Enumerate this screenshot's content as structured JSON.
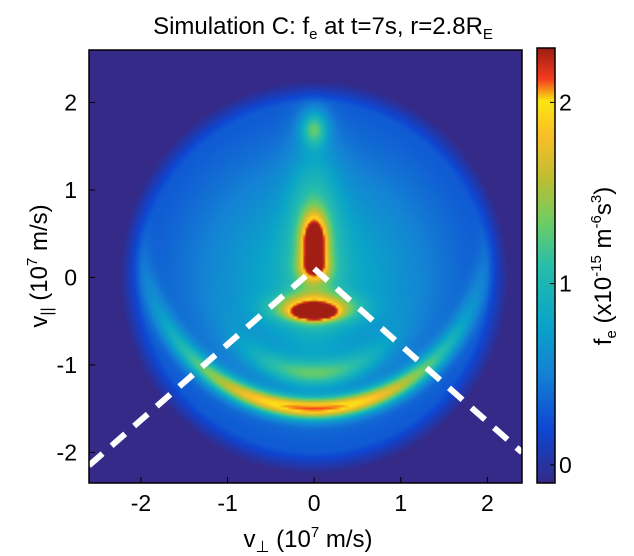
{
  "chart_data": {
    "type": "heatmap",
    "title": {
      "main": "Simulation C: f",
      "main_sub": "e",
      "rest": " at t=7s, r=2.8R",
      "rest_sub": "E"
    },
    "xlabel": {
      "base": "v",
      "sub": "⊥",
      "rest": " (10",
      "sup": "7",
      "tail": " m/s)"
    },
    "ylabel": {
      "base": "v",
      "sub": "||",
      "rest": " (10",
      "sup": "7",
      "tail": " m/s)"
    },
    "colorbar_label": {
      "base": "f",
      "sub": "e",
      "rest1": " (x10",
      "sup1": "-15",
      "rest2": " m",
      "sup2": "-6",
      "rest3": "s",
      "sup3": "3",
      "rest4": ")"
    },
    "xlim": [
      -2.6,
      2.4
    ],
    "ylim": [
      -2.35,
      2.6
    ],
    "xticks": [
      -2,
      -1,
      0,
      1,
      2
    ],
    "xtick_labels": [
      "-2",
      "-1",
      "0",
      "1",
      "2"
    ],
    "yticks": [
      -2,
      -1,
      0,
      1,
      2
    ],
    "ytick_labels": [
      "-2",
      "-1",
      "0",
      "1",
      "2"
    ],
    "clim": [
      -0.1,
      2.3
    ],
    "cticks": [
      0,
      1,
      2
    ],
    "ctick_labels": [
      "0",
      "1",
      "2"
    ],
    "colormap": "parula",
    "background_color": "#3b1f8f",
    "domain_radius": 2.25,
    "blobs": [
      {
        "x": 0,
        "y": 0,
        "sx": 1.4,
        "sy": 1.4,
        "a": 0.35
      },
      {
        "x": 0,
        "y": 0.55,
        "sx": 0.3,
        "sy": 1.0,
        "a": 0.28
      },
      {
        "x": 0,
        "y": 0.4,
        "sx": 0.13,
        "sy": 0.28,
        "a": 0.9
      },
      {
        "x": 0,
        "y": 0.12,
        "sx": 0.16,
        "sy": 0.14,
        "a": 0.45
      },
      {
        "x": 0,
        "y": -0.4,
        "sx": 0.2,
        "sy": 0.07,
        "a": 1.3
      },
      {
        "x": 0,
        "y": -0.35,
        "sx": 0.45,
        "sy": 0.15,
        "a": 0.6
      },
      {
        "x": 0,
        "y": 1.7,
        "sx": 0.15,
        "sy": 0.2,
        "a": 0.4
      }
    ],
    "arcs": [
      {
        "cx": 0,
        "cy": 0.5,
        "r": 2.0,
        "w": 0.12,
        "spread": 0.9,
        "a": 0.85
      },
      {
        "cx": 0,
        "cy": 0.1,
        "r": 1.2,
        "w": 0.15,
        "spread": 0.7,
        "a": 0.35
      }
    ],
    "dashed_lines": [
      {
        "x1": -2.6,
        "y1": -2.15,
        "x2": 0,
        "y2": 0.1
      },
      {
        "x1": 0,
        "y1": 0.1,
        "x2": 2.4,
        "y2": -2.0
      }
    ],
    "dashed_line_color": "#ffffff"
  }
}
